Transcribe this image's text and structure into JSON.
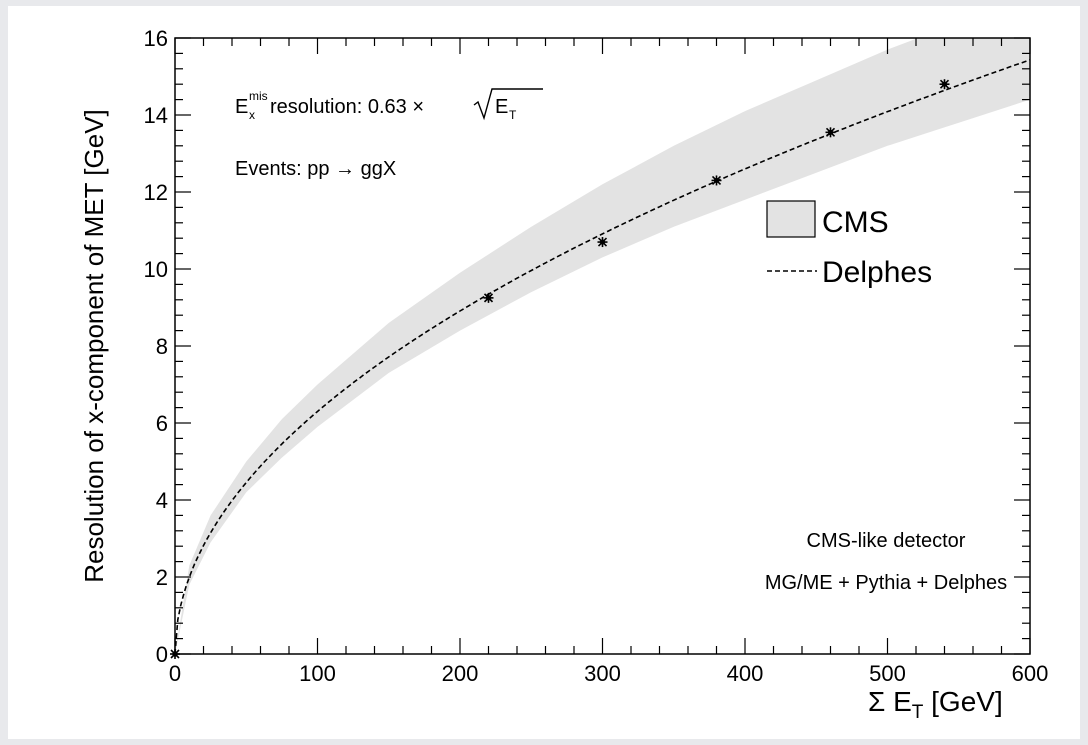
{
  "chart_data": {
    "type": "line",
    "title": "",
    "xlabel": "Σ E",
    "xlabel_sub": "T",
    "xlabel_unit": " [GeV]",
    "ylabel": "Resolution of x-component  of MET [GeV]",
    "xlim": [
      0,
      600
    ],
    "ylim": [
      0,
      16
    ],
    "xticks": [
      0,
      100,
      200,
      300,
      400,
      500,
      600
    ],
    "yticks": [
      0,
      2,
      4,
      6,
      8,
      10,
      12,
      14,
      16
    ],
    "grid": false,
    "legend_position": "right",
    "formula": {
      "E": "E",
      "sup": "mis",
      "sub": "x",
      "text": " resolution: 0.63 ×",
      "root_E": "E",
      "root_sub": "T"
    },
    "events_label": "Events: pp → ggX",
    "detector_label": "CMS-like detector",
    "generator_label": "MG/ME + Pythia + Delphes",
    "series": [
      {
        "name": "CMS",
        "style": "band",
        "color": "#e3e3e3",
        "x": [
          0,
          10,
          25,
          50,
          75,
          100,
          150,
          200,
          250,
          300,
          350,
          400,
          450,
          500,
          550,
          600
        ],
        "lower": [
          0,
          1.8,
          2.9,
          4.2,
          5.1,
          5.9,
          7.3,
          8.4,
          9.4,
          10.3,
          11.1,
          11.8,
          12.5,
          13.2,
          13.8,
          14.4
        ],
        "upper": [
          0,
          2.3,
          3.6,
          5.0,
          6.1,
          7.0,
          8.6,
          9.9,
          11.1,
          12.2,
          13.2,
          14.1,
          14.9,
          15.7,
          16.4,
          17.1
        ]
      },
      {
        "name": "Delphes",
        "style": "dashed",
        "color": "#000000",
        "coefficient": 0.63,
        "points_x": [
          0,
          220,
          300,
          380,
          460,
          540
        ],
        "points_y": [
          0,
          9.25,
          10.7,
          12.3,
          13.55,
          14.8
        ]
      }
    ]
  }
}
